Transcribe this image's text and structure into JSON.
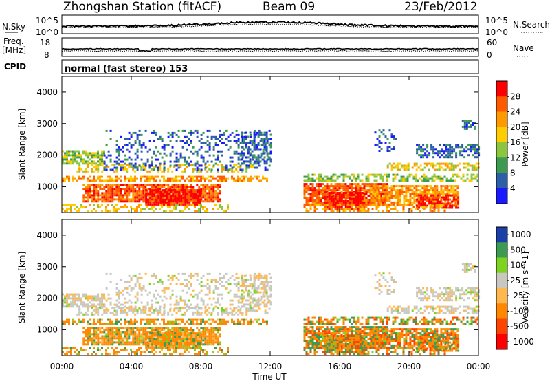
{
  "header": {
    "title": "Zhongshan Station (fitACF)",
    "beam": "Beam 09",
    "date": "23/Feb/2012"
  },
  "noise_panel": {
    "left_label": "N.Sky",
    "right_label": "N.Search",
    "ticks_left": [
      "10^5",
      "10^0"
    ],
    "ticks_right": [
      "10^5",
      "10^0"
    ]
  },
  "freq_panel": {
    "left_label_1": "Freq.",
    "left_label_2": "[MHz]",
    "right_label": "Nave",
    "ticks_left": [
      "18",
      "8"
    ],
    "ticks_right": [
      "60",
      "0"
    ]
  },
  "cpid_panel": {
    "label": "CPID",
    "mode_text": "normal (fast stereo) 153"
  },
  "power_panel": {
    "ylabel": "Slant Range [km]",
    "yticks": [
      "4000",
      "3000",
      "2000",
      "1000"
    ],
    "colorbar_label": "Power [dB]",
    "colorbar_ticks": [
      "28",
      "24",
      "20",
      "16",
      "12",
      "8",
      "4"
    ],
    "colorbar_colors": [
      "#ff0000",
      "#ff5a00",
      "#ff9900",
      "#ffcc00",
      "#8cc63f",
      "#3c9b50",
      "#2c5fa8",
      "#1a1aff"
    ]
  },
  "velocity_panel": {
    "ylabel": "Slant Range [km]",
    "yticks": [
      "4000",
      "3000",
      "2000",
      "1000"
    ],
    "colorbar_label": "Velocity [m s^-1]",
    "colorbar_ticks": [
      "1000",
      "500",
      "100",
      "25",
      "-25",
      "-100",
      "-500",
      "-1000"
    ],
    "colorbar_colors": [
      "#1a3fa8",
      "#3c9b50",
      "#7ed321",
      "#c8c8c0",
      "#ffb84d",
      "#ff8800",
      "#ff4400",
      "#ff0000"
    ]
  },
  "xaxis": {
    "label": "Time UT",
    "ticks": [
      "00:00",
      "04:00",
      "08:00",
      "12:00",
      "16:00",
      "20:00",
      "00:00"
    ]
  },
  "chart_data": [
    {
      "type": "line",
      "title": "Zhongshan Station (fitACF)",
      "series": [
        {
          "name": "N.Sky"
        },
        {
          "name": "N.Search"
        }
      ],
      "ylim_label": [
        "10^0",
        "10^5"
      ]
    },
    {
      "type": "line",
      "series": [
        {
          "name": "Freq."
        },
        {
          "name": "Nave"
        }
      ],
      "ylim_left": [
        8,
        18
      ],
      "ylim_right": [
        0,
        60
      ]
    },
    {
      "type": "heatmap",
      "xlabel": "Time UT",
      "ylabel": "Slant Range [km]",
      "xlim": [
        "00:00",
        "00:00"
      ],
      "ylim": [
        180,
        4500
      ],
      "colorbar": "Power [dB]",
      "clim": [
        0,
        30
      ]
    },
    {
      "type": "heatmap",
      "xlabel": "Time UT",
      "ylabel": "Slant Range [km]",
      "xlim": [
        "00:00",
        "00:00"
      ],
      "ylim": [
        180,
        4500
      ],
      "colorbar": "Velocity [m s^-1]",
      "clim": [
        -1000,
        1000
      ]
    }
  ]
}
